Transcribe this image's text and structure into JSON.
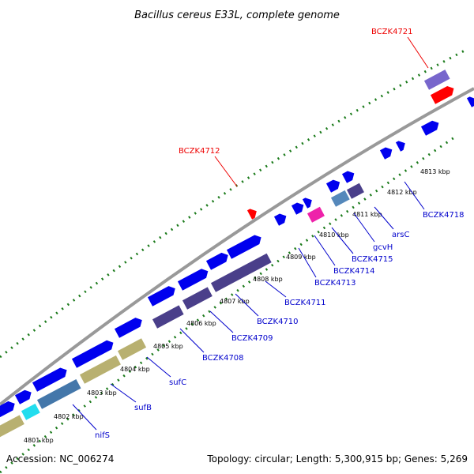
{
  "title": "Bacillus cereus E33L, complete genome",
  "footer": {
    "accession": "Accession: NC_006274",
    "summary": "Topology: circular; Length: 5,300,915 bp; Genes: 5,269"
  },
  "colors": {
    "cds": "#0000ee",
    "highlight": "#ff0000",
    "backbone": "#888888",
    "tick_dots": "#1a7a1a",
    "label_blue": "#0000cc",
    "label_red": "#ee0000"
  },
  "scale_ticks": [
    "4801 kbp",
    "4802 kbp",
    "4803 kbp",
    "4804 kbp",
    "4805 kbp",
    "4806 kbp",
    "4807 kbp",
    "4808 kbp",
    "4809 kbp",
    "4810 kbp",
    "4811 kbp",
    "4812 kbp",
    "4813 kbp"
  ],
  "gene_labels": [
    "nifS",
    "sufB",
    "sufC",
    "BCZK4708",
    "BCZK4709",
    "BCZK4710",
    "BCZK4711",
    "BCZK4713",
    "BCZK4714",
    "BCZK4715",
    "gcvH",
    "arsC",
    "BCZK4718"
  ],
  "highlight_labels": [
    "BCZK4712",
    "BCZK4721"
  ]
}
